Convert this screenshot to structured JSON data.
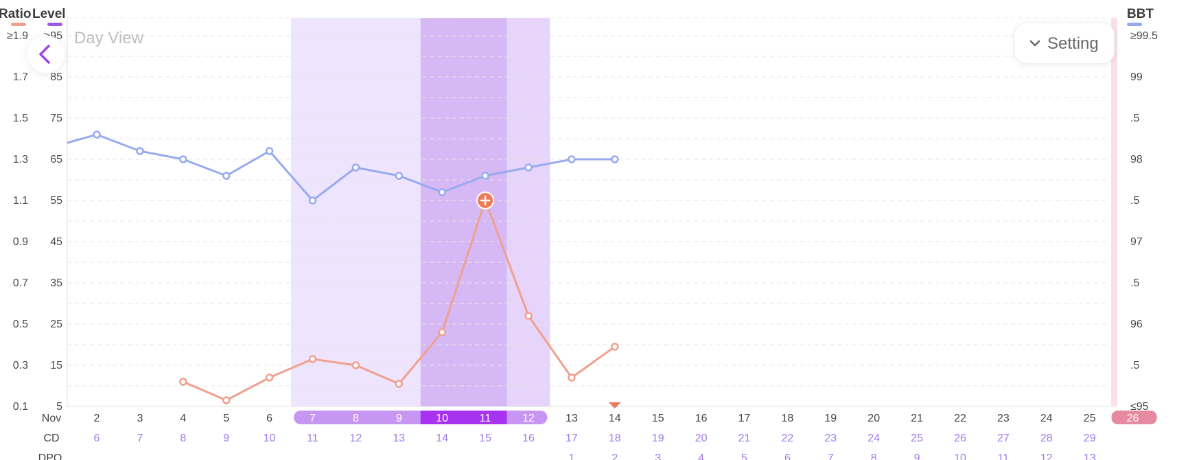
{
  "header": {
    "ratio_title": "Ratio",
    "level_title": "Level",
    "bbt_title": "BBT",
    "ratio_color": "#f0a08e",
    "level_color": "#9b59e6",
    "bbt_color": "#97aaf0"
  },
  "day_view_label": "Day View",
  "setting_label": "Setting",
  "chart_data": {
    "type": "line",
    "ratio_axis_labels": [
      "≥1.9",
      "1.7",
      "1.5",
      "1.3",
      "1.1",
      "0.9",
      "0.7",
      "0.5",
      "0.3",
      "0.1"
    ],
    "level_axis_labels": [
      ">95",
      "85",
      "75",
      "65",
      "55",
      "45",
      "35",
      "25",
      "15",
      "5"
    ],
    "bbt_axis_labels": [
      "≥99.5",
      "99",
      ".5",
      "98",
      ".5",
      "97",
      ".5",
      "96",
      ".5",
      "≤95"
    ],
    "ratio_range": [
      0.1,
      1.9
    ],
    "level_range": [
      5,
      95
    ],
    "bbt_range": [
      95,
      99.5
    ],
    "month_label": "Nov",
    "row_labels": [
      "CD",
      "DPO"
    ],
    "dates": [
      "2",
      "3",
      "4",
      "5",
      "6",
      "7",
      "8",
      "9",
      "10",
      "11",
      "12",
      "13",
      "14",
      "15",
      "16",
      "17",
      "18",
      "19",
      "20",
      "21",
      "22",
      "23",
      "24",
      "25",
      "26"
    ],
    "cd": [
      "6",
      "7",
      "8",
      "9",
      "10",
      "11",
      "12",
      "13",
      "14",
      "15",
      "16",
      "17",
      "18",
      "19",
      "20",
      "21",
      "22",
      "23",
      "24",
      "25",
      "26",
      "27",
      "28",
      "29",
      ""
    ],
    "dpo": [
      "",
      "",
      "",
      "",
      "",
      "",
      "",
      "",
      "",
      "",
      "",
      "1",
      "2",
      "3",
      "4",
      "5",
      "6",
      "7",
      "8",
      "9",
      "10",
      "11",
      "12",
      "13",
      ""
    ],
    "bbt_series": {
      "name": "BBT",
      "color": "#97aaf0",
      "values": [
        98.3,
        98.1,
        98.0,
        97.8,
        98.1,
        97.5,
        97.9,
        97.8,
        97.6,
        97.8,
        97.9,
        98.0,
        98.0
      ],
      "start_value": 98.2
    },
    "ratio_series": {
      "name": "Ratio",
      "color": "#f0a08e",
      "values": [
        null,
        null,
        0.22,
        0.13,
        0.24,
        0.33,
        0.3,
        0.21,
        0.46,
        1.1,
        0.54,
        0.24,
        0.39
      ],
      "peak_index": 9
    },
    "fertile_window": {
      "light_dates": [
        "7",
        "8",
        "9"
      ],
      "dark_dates": [
        "10",
        "11"
      ],
      "medium_dates": [
        "12"
      ]
    },
    "today_date": "14",
    "period_date": "26",
    "colors": {
      "light_band": "#efe4fd",
      "dark_band": "#d6b8f5",
      "medium_band": "#e6d4fa",
      "pill_light": "#c796f2",
      "pill_dark": "#a733f0",
      "period": "#e58aa0",
      "period_band": "#fbe0e8",
      "purple_text": "#a27ae8",
      "today_marker": "#ef7a60"
    }
  }
}
